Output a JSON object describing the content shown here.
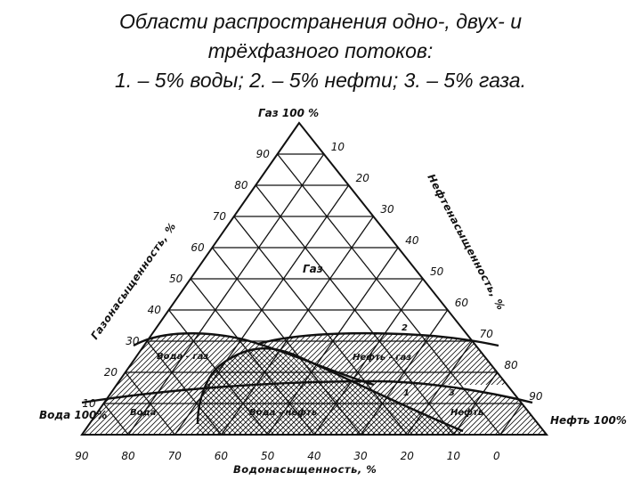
{
  "title": {
    "line1": "Области распространения одно-, двух- и",
    "line2": "трёхфазного потоков:",
    "line3": "1. – 5% воды; 2. – 5% нефти; 3. – 5% газа."
  },
  "diagram": {
    "corners": {
      "top": "Газ   100 %",
      "left": "Вода 100%",
      "right": "Нефть 100%"
    },
    "axis_titles": {
      "left": "Газонасыщенность, %",
      "right": "Нефтенасыщенность, %",
      "bottom": "Водонасыщенность, %"
    },
    "left_ticks": [
      "90",
      "80",
      "70",
      "60",
      "50",
      "40",
      "30",
      "20",
      "10"
    ],
    "right_ticks": [
      "10",
      "20",
      "30",
      "40",
      "50",
      "60",
      "70",
      "80",
      "90"
    ],
    "bottom_ticks": [
      "90",
      "80",
      "70",
      "60",
      "50",
      "40",
      "30",
      "20",
      "10",
      "0"
    ],
    "regions": {
      "gas": "Газ",
      "water_gas": "Вода - газ",
      "oil_gas": "Нефть - газ",
      "water_oil": "Вода - нефть",
      "water": "Вода",
      "oil": "Нефть"
    },
    "curve_labels": [
      "1",
      "2",
      "3"
    ],
    "line_color": "#111111"
  }
}
